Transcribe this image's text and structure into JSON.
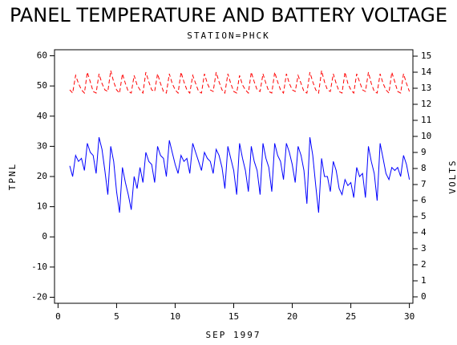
{
  "chart_data": {
    "type": "line",
    "title": "PANEL TEMPERATURE AND BATTERY VOLTAGE",
    "subtitle": "STATION=PHCK",
    "x_label": "SEP 1997",
    "y_label": "TPNL",
    "y2_label": "VOLTS",
    "xlim": [
      -0.3,
      30.3
    ],
    "xticks": [
      0,
      5,
      10,
      15,
      20,
      25,
      30
    ],
    "ylim": [
      -22,
      62
    ],
    "yticks": [
      -20,
      -10,
      0,
      10,
      20,
      30,
      40,
      50,
      60
    ],
    "y2lim": [
      -0.4,
      15.4
    ],
    "y2ticks": [
      0,
      1,
      2,
      3,
      4,
      5,
      6,
      7,
      8,
      9,
      10,
      11,
      12,
      13,
      14,
      15
    ],
    "x": [
      1,
      1.25,
      1.5,
      1.75,
      2,
      2.25,
      2.5,
      2.75,
      3,
      3.25,
      3.5,
      3.75,
      4,
      4.25,
      4.5,
      4.75,
      5,
      5.25,
      5.5,
      5.75,
      6,
      6.25,
      6.5,
      6.75,
      7,
      7.25,
      7.5,
      7.75,
      8,
      8.25,
      8.5,
      8.75,
      9,
      9.25,
      9.5,
      9.75,
      10,
      10.25,
      10.5,
      10.75,
      11,
      11.25,
      11.5,
      11.75,
      12,
      12.25,
      12.5,
      12.75,
      13,
      13.25,
      13.5,
      13.75,
      14,
      14.25,
      14.5,
      14.75,
      15,
      15.25,
      15.5,
      15.75,
      16,
      16.25,
      16.5,
      16.75,
      17,
      17.25,
      17.5,
      17.75,
      18,
      18.25,
      18.5,
      18.75,
      19,
      19.25,
      19.5,
      19.75,
      20,
      20.25,
      20.5,
      20.75,
      21,
      21.25,
      21.5,
      21.75,
      22,
      22.25,
      22.5,
      22.75,
      23,
      23.25,
      23.5,
      23.75,
      24,
      24.25,
      24.5,
      24.75,
      25,
      25.25,
      25.5,
      25.75,
      26,
      26.25,
      26.5,
      26.75,
      27,
      27.25,
      27.5,
      27.75,
      28,
      28.25,
      28.5,
      28.75,
      29,
      29.25,
      29.5,
      29.75,
      30
    ],
    "series": [
      {
        "color": "#0000ff",
        "axis": "y",
        "dashed": false,
        "values": [
          23.5,
          20,
          27,
          25,
          26,
          22,
          31,
          28,
          27,
          21,
          33,
          29,
          22,
          14,
          30,
          25,
          15,
          8,
          23,
          18,
          14,
          9,
          20,
          16,
          23,
          18,
          28,
          25,
          24,
          18,
          30,
          27,
          26,
          20,
          32,
          28,
          24,
          21,
          27,
          25,
          26,
          21,
          31,
          28,
          25,
          22,
          28,
          26,
          25,
          21,
          29,
          27,
          23,
          16,
          30,
          26,
          22,
          14,
          31,
          26,
          22,
          15,
          30,
          25,
          22,
          14,
          31,
          26,
          23,
          15,
          31,
          27,
          25,
          19,
          31,
          28,
          24,
          18,
          30,
          27,
          22,
          11,
          33,
          27,
          17,
          8,
          26,
          20,
          20,
          15,
          25,
          22,
          16,
          14,
          19,
          17,
          18,
          13,
          23,
          20,
          21,
          13,
          30,
          25,
          21,
          12,
          31,
          26,
          21,
          19,
          23,
          22,
          23,
          20,
          27,
          24,
          19
        ]
      },
      {
        "color": "#ff0000",
        "axis": "y2",
        "dashed": true,
        "values": [
          12.9,
          12.7,
          13.8,
          13.3,
          12.9,
          12.7,
          14.0,
          13.4,
          12.8,
          12.7,
          13.9,
          13.3,
          12.9,
          12.8,
          14.1,
          13.4,
          12.9,
          12.7,
          13.9,
          13.3,
          12.8,
          12.7,
          13.8,
          13.2,
          12.9,
          12.7,
          14.0,
          13.4,
          12.9,
          12.8,
          13.9,
          13.3,
          12.8,
          12.7,
          13.9,
          13.3,
          12.9,
          12.7,
          14.0,
          13.4,
          12.9,
          12.7,
          13.8,
          13.3,
          12.8,
          12.7,
          13.9,
          13.3,
          12.9,
          12.8,
          14.0,
          13.4,
          12.9,
          12.7,
          13.9,
          13.3,
          12.8,
          12.7,
          13.8,
          13.2,
          12.9,
          12.7,
          14.0,
          13.4,
          12.9,
          12.8,
          13.9,
          13.3,
          12.8,
          12.7,
          14.0,
          13.4,
          12.9,
          12.7,
          13.9,
          13.3,
          12.9,
          12.8,
          13.8,
          13.3,
          12.8,
          12.7,
          14.0,
          13.4,
          12.9,
          12.7,
          14.1,
          13.4,
          12.9,
          12.8,
          13.9,
          13.3,
          12.8,
          12.7,
          14.0,
          13.3,
          12.9,
          12.7,
          13.9,
          13.4,
          12.9,
          12.8,
          14.0,
          13.3,
          12.8,
          12.7,
          13.9,
          13.3,
          12.9,
          12.7,
          14.0,
          13.4,
          12.8,
          12.7,
          13.9,
          13.3,
          12.8
        ]
      }
    ]
  }
}
